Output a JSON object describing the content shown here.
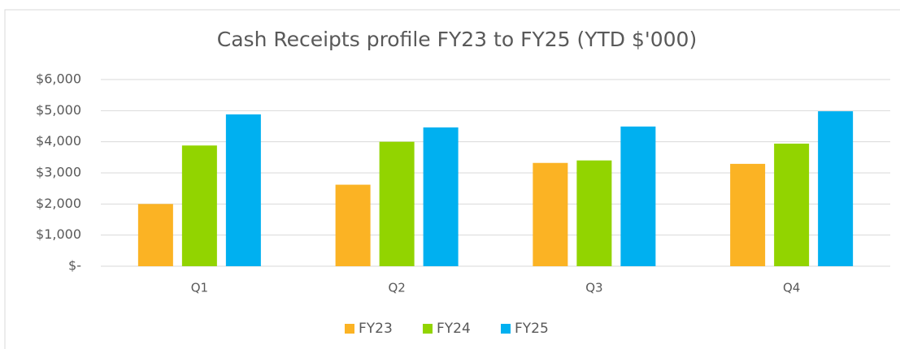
{
  "chart_data": {
    "type": "bar",
    "title": "Cash Receipts profile FY23 to FY25 (YTD $'000)",
    "categories": [
      "Q1",
      "Q2",
      "Q3",
      "Q4"
    ],
    "series": [
      {
        "name": "FY23",
        "color": "#fbb324",
        "values": [
          2000,
          2620,
          3320,
          3290
        ]
      },
      {
        "name": "FY24",
        "color": "#92d400",
        "values": [
          3880,
          4000,
          3400,
          3940
        ]
      },
      {
        "name": "FY25",
        "color": "#00b0f0",
        "values": [
          4880,
          4460,
          4490,
          4980
        ]
      }
    ],
    "ylim": [
      0,
      6000
    ],
    "yticks": [
      {
        "value": 0,
        "label": "$-"
      },
      {
        "value": 1000,
        "label": "$1,000"
      },
      {
        "value": 2000,
        "label": "$2,000"
      },
      {
        "value": 3000,
        "label": "$3,000"
      },
      {
        "value": 4000,
        "label": "$4,000"
      },
      {
        "value": 5000,
        "label": "$5,000"
      },
      {
        "value": 6000,
        "label": "$6,000"
      }
    ],
    "grid": true,
    "legend": "bottom"
  }
}
